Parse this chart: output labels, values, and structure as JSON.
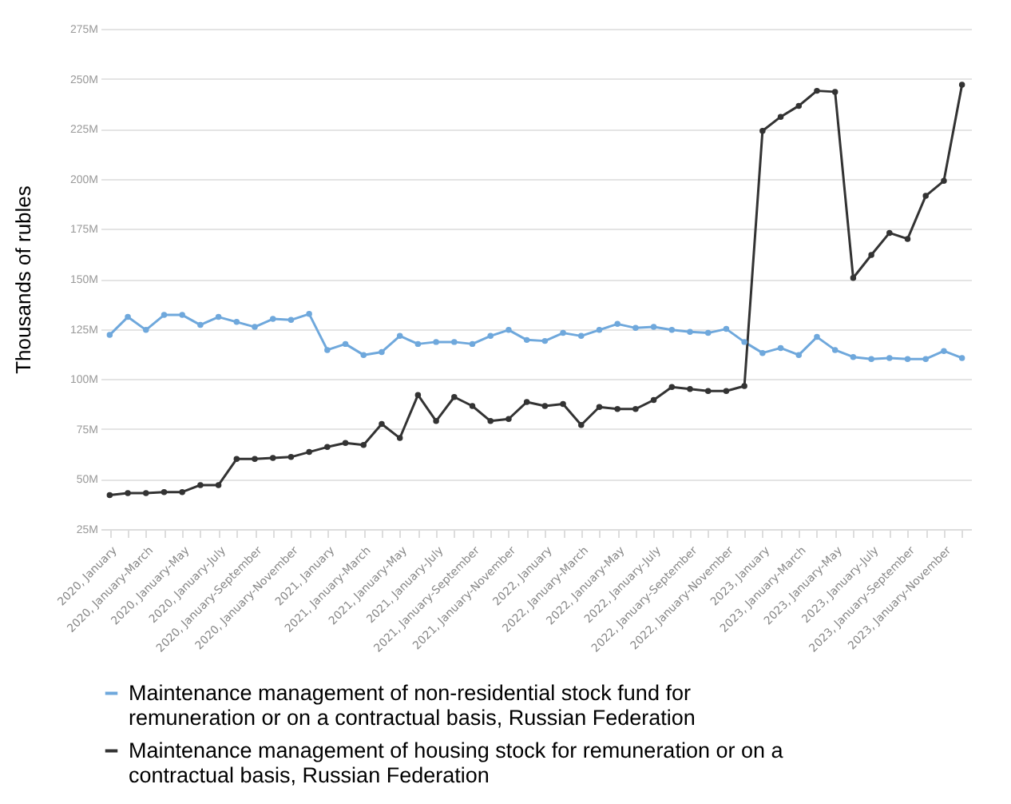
{
  "chart_data": {
    "type": "line",
    "ylabel": "Thousands of rubles",
    "categories": [
      "2020, January",
      null,
      "2020, January-March",
      null,
      "2020, January-May",
      null,
      "2020, January-July",
      null,
      "2020, January-September",
      null,
      "2020, January-November",
      null,
      "2021, January",
      null,
      "2021, January-March",
      null,
      "2021, January-May",
      null,
      "2021, January-July",
      null,
      "2021, January-September",
      null,
      "2021, January-November",
      null,
      "2022, January",
      null,
      "2022, January-March",
      null,
      "2022, January-May",
      null,
      "2022, January-July",
      null,
      "2022, January-September",
      null,
      "2022, January-November",
      null,
      "2023, January",
      null,
      "2023, January-March",
      null,
      "2023, January-May",
      null,
      "2023, January-July",
      null,
      "2023, January-September",
      null,
      "2023, January-November",
      null
    ],
    "series": [
      {
        "name": "Maintenance management of non-residential stock fund for remuneration or on a contractual basis, Russian Federation",
        "color": "#6fa8dc",
        "values": [
          122,
          131,
          124.5,
          132,
          132,
          127,
          131,
          128.5,
          126,
          130,
          129.5,
          132.5,
          114.5,
          117.5,
          112,
          113.5,
          121.5,
          117.5,
          118.5,
          118.5,
          117.5,
          121.5,
          124.5,
          119.5,
          119,
          123,
          121.5,
          124.5,
          127.5,
          125.5,
          126,
          124.5,
          123.5,
          123,
          125,
          118.5,
          113,
          115.5,
          112,
          121,
          114.5,
          111,
          110,
          110.5,
          110,
          110,
          114,
          110.5
        ]
      },
      {
        "name": "Maintenance management of housing stock for remuneration or on a contractual basis, Russian Federation",
        "color": "#333333",
        "values": [
          42,
          43,
          43,
          43.5,
          43.5,
          47,
          47,
          60,
          60,
          60.5,
          61,
          63.5,
          66,
          68,
          67,
          77.5,
          70.5,
          92,
          79,
          91,
          86.5,
          79,
          80,
          88.5,
          86.5,
          87.5,
          77,
          86,
          85,
          85,
          89.5,
          96,
          95,
          94,
          94,
          96.5,
          224,
          231,
          236.5,
          244,
          243.5,
          150.5,
          162,
          173,
          170,
          191.5,
          199,
          247
        ]
      }
    ],
    "ylim": [
      25,
      275
    ],
    "yticks": [
      {
        "value": 25,
        "label": "25M"
      },
      {
        "value": 50,
        "label": "50M"
      },
      {
        "value": 75,
        "label": "75M"
      },
      {
        "value": 100,
        "label": "100M"
      },
      {
        "value": 125,
        "label": "125M"
      },
      {
        "value": 150,
        "label": "150M"
      },
      {
        "value": 175,
        "label": "175M"
      },
      {
        "value": 200,
        "label": "200M"
      },
      {
        "value": 225,
        "label": "225M"
      },
      {
        "value": 250,
        "label": "250M"
      },
      {
        "value": 275,
        "label": "275M"
      }
    ],
    "grid": "y",
    "legend": "bottom",
    "marker": "circle",
    "line_style": "solid"
  }
}
